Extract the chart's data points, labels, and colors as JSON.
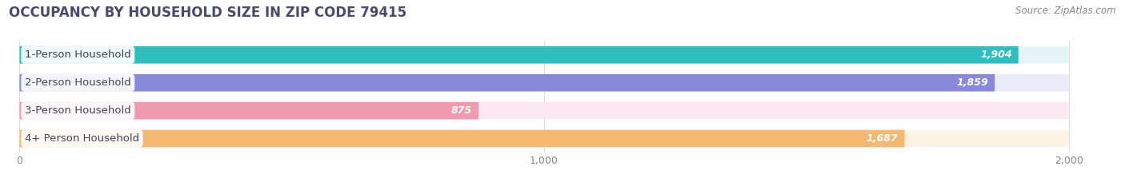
{
  "title": "OCCUPANCY BY HOUSEHOLD SIZE IN ZIP CODE 79415",
  "source": "Source: ZipAtlas.com",
  "categories": [
    "1-Person Household",
    "2-Person Household",
    "3-Person Household",
    "4+ Person Household"
  ],
  "values": [
    1904,
    1859,
    875,
    1687
  ],
  "bar_colors": [
    "#2dbfbf",
    "#8888dd",
    "#f09ab0",
    "#f5b870"
  ],
  "bar_bg_colors": [
    "#e5f5f5",
    "#eaeaf8",
    "#fce8f0",
    "#fdf3e5"
  ],
  "xlim": [
    0,
    2000
  ],
  "xticks": [
    0,
    1000,
    2000
  ],
  "xtick_labels": [
    "0",
    "1,000",
    "2,000"
  ],
  "title_color": "#4a4a6a",
  "label_color": "#444455",
  "value_text_color": "#ffffff",
  "source_color": "#888888",
  "title_fontsize": 12,
  "label_fontsize": 9.5,
  "value_fontsize": 9,
  "source_fontsize": 8.5,
  "figsize": [
    14.06,
    2.33
  ],
  "dpi": 100,
  "bg_color": "#ffffff"
}
